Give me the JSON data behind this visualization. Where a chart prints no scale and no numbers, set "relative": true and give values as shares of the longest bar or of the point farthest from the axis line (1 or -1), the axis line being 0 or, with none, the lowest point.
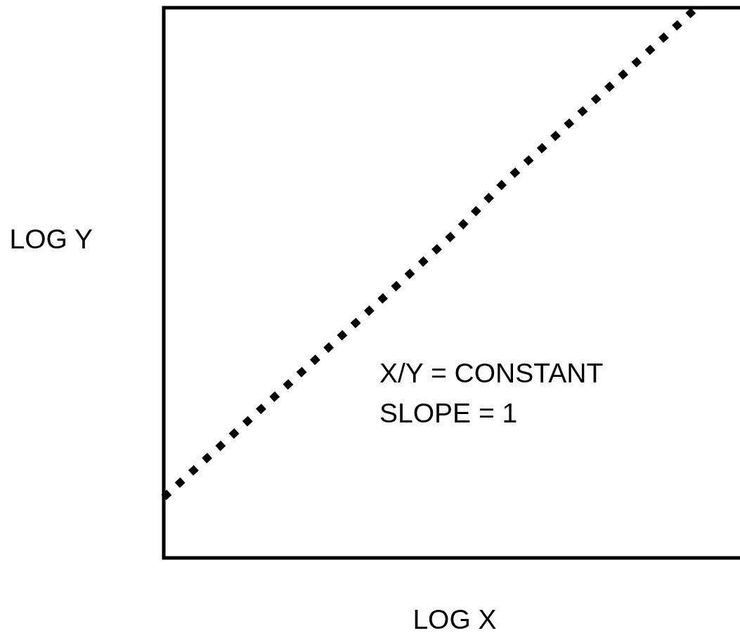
{
  "chart_data": {
    "type": "line",
    "xlabel": "LOG X",
    "ylabel": "LOG Y",
    "annotations": [
      "X/Y = CONSTANT",
      "SLOPE = 1"
    ],
    "categories": [
      null,
      null,
      null,
      null,
      null,
      null,
      null,
      null,
      null,
      null,
      null,
      null,
      null
    ],
    "series": [
      {
        "color": "#000000",
        "values": [
          0.11,
          0.19,
          0.27,
          0.35,
          0.43,
          0.51,
          0.59,
          0.68,
          0.76,
          0.84,
          0.92,
          1,
          null
        ]
      }
    ],
    "relative": true,
    "line_style": "dotted",
    "marker": "none"
  }
}
